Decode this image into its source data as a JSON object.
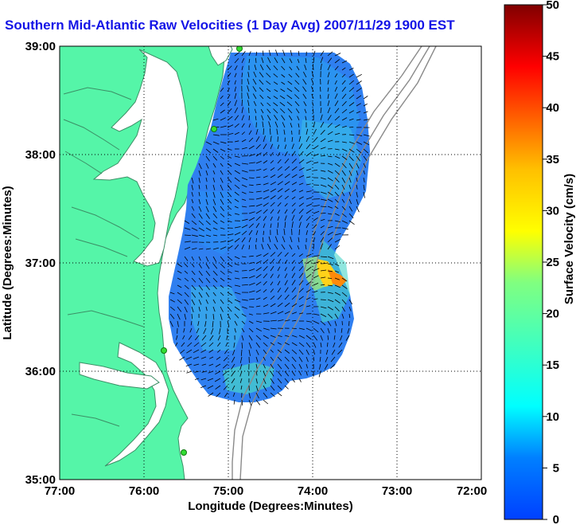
{
  "title": "Southern Mid-Atlantic Raw Velocities (1 Day Avg) 2007/11/29 1900 EST",
  "chart_data": {
    "type": "map",
    "xlabel": "Longitude (Degrees:Minutes)",
    "ylabel": "Latitude (Degrees:Minutes)",
    "x_ticks": [
      "77:00",
      "76:00",
      "75:00",
      "74:00",
      "73:00",
      "72:00"
    ],
    "y_ticks": [
      "39:00",
      "38:00",
      "37:00",
      "36:00",
      "35:00"
    ],
    "xlim": [
      -77,
      -72
    ],
    "ylim": [
      35,
      39
    ],
    "grid": "dotted",
    "colorbar": {
      "label": "Surface Velocity (cm/s)",
      "min": 0,
      "max": 50,
      "ticks": [
        "0",
        "5",
        "10",
        "15",
        "20",
        "25",
        "30",
        "35",
        "40",
        "45",
        "50"
      ],
      "colormap": "jet"
    },
    "land_color": "#55f5a8",
    "radar_site_color": "#33dd33"
  }
}
